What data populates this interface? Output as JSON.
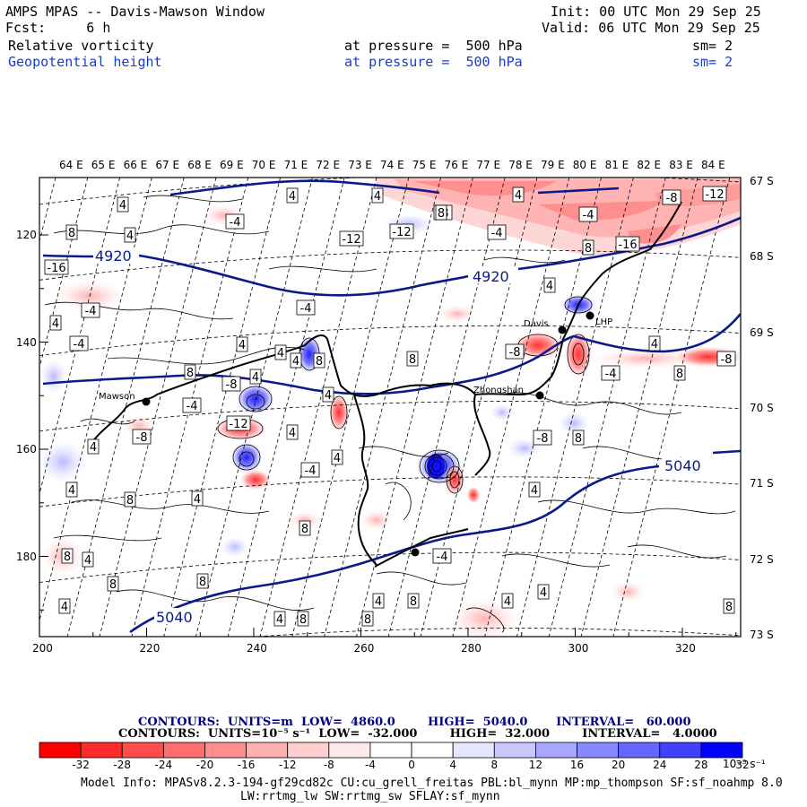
{
  "header": {
    "title": "AMPS MPAS -- Davis-Mawson Window",
    "fcst": "Fcst:     6 h",
    "init": "Init: 00 UTC Mon 29 Sep 25",
    "valid": "Valid: 06 UTC Mon 29 Sep 25",
    "field1": {
      "name": "Relative vorticity",
      "level": "at pressure =  500 hPa",
      "sm": "sm= 2"
    },
    "field2": {
      "name": "Geopotential height",
      "level": "at pressure =  500 hPa",
      "sm": "sm= 2"
    }
  },
  "map": {
    "lon_labels": [
      "64 E",
      "65 E",
      "66 E",
      "67 E",
      "68 E",
      "69 E",
      "70 E",
      "71 E",
      "72 E",
      "73 E",
      "74 E",
      "75 E",
      "76 E",
      "77 E",
      "78 E",
      "79 E",
      "80 E",
      "81 E",
      "82 E",
      "83 E",
      "84 E"
    ],
    "lat_labels": [
      "67 S",
      "68 S",
      "69 S",
      "70 S",
      "71 S",
      "72 S",
      "73 S"
    ],
    "x_ticks": [
      "200",
      "220",
      "240",
      "260",
      "280",
      "300",
      "320"
    ],
    "y_ticks": [
      "120",
      "140",
      "160",
      "180"
    ],
    "stations": [
      {
        "name": "Mawson"
      },
      {
        "name": "Davis"
      },
      {
        "name": "Zhongshan"
      },
      {
        "name": "LHP"
      }
    ],
    "height_contours": [
      "4920",
      "4920",
      "5040",
      "5040"
    ],
    "vort_labels": [
      "4",
      "4",
      "4",
      "4",
      "8",
      "-4",
      "-8",
      "4",
      "-4",
      "8",
      "8",
      "-4",
      "-16",
      "-8",
      "-12",
      "-12",
      "-12",
      "-16",
      "-4",
      "4",
      "-4",
      "-4",
      "8",
      "4",
      "8",
      "8",
      "4",
      "4",
      "8",
      "-8",
      "-4",
      "-8",
      "-12",
      "-4",
      "-8",
      "4",
      "4",
      "4",
      "-4",
      "-8",
      "8",
      "4",
      "4",
      "8",
      "4",
      "8",
      "8",
      "4",
      "8",
      "8",
      "-4",
      "4",
      "4",
      "4",
      "8",
      "4",
      "8",
      "8",
      "4",
      "8",
      "-8",
      "4",
      "4",
      "4",
      "4"
    ]
  },
  "contour_info": {
    "line1": "CONTOURS:  UNITS=m  LOW=  4860.0        HIGH=  5040.0       INTERVAL=   60.000",
    "line2": "CONTOURS:  UNITS=10⁻⁵ s⁻¹  LOW=  -32.000        HIGH=  32.000        INTERVAL=   4.0000"
  },
  "colorbar": {
    "labels": [
      "-32",
      "-28",
      "-24",
      "-20",
      "-16",
      "-12",
      "-8",
      "-4",
      "0",
      "4",
      "8",
      "12",
      "16",
      "20",
      "24",
      "28",
      "32"
    ],
    "units": "10⁻⁵ s⁻¹",
    "colors": [
      "#ff0000",
      "#ff2a2a",
      "#ff4d4d",
      "#ff6e6e",
      "#ff8e8e",
      "#ffb0b0",
      "#ffcfcf",
      "#ffe8e8",
      "#ffffff",
      "#ffffff",
      "#e6e6ff",
      "#c8c8ff",
      "#a8a8ff",
      "#8888ff",
      "#6565ff",
      "#4040ff",
      "#0000ff"
    ]
  },
  "footer": {
    "line1": "Model Info: MPASv8.2.3-194-gf29cd82c CU:cu_grell_freitas PBL:bl_mynn MP:mp_thompson SF:sf_noahmp 8.0",
    "line2": "LW:rrtmg_lw SW:rrtmg_sw SFLAY:sf_mynn"
  }
}
